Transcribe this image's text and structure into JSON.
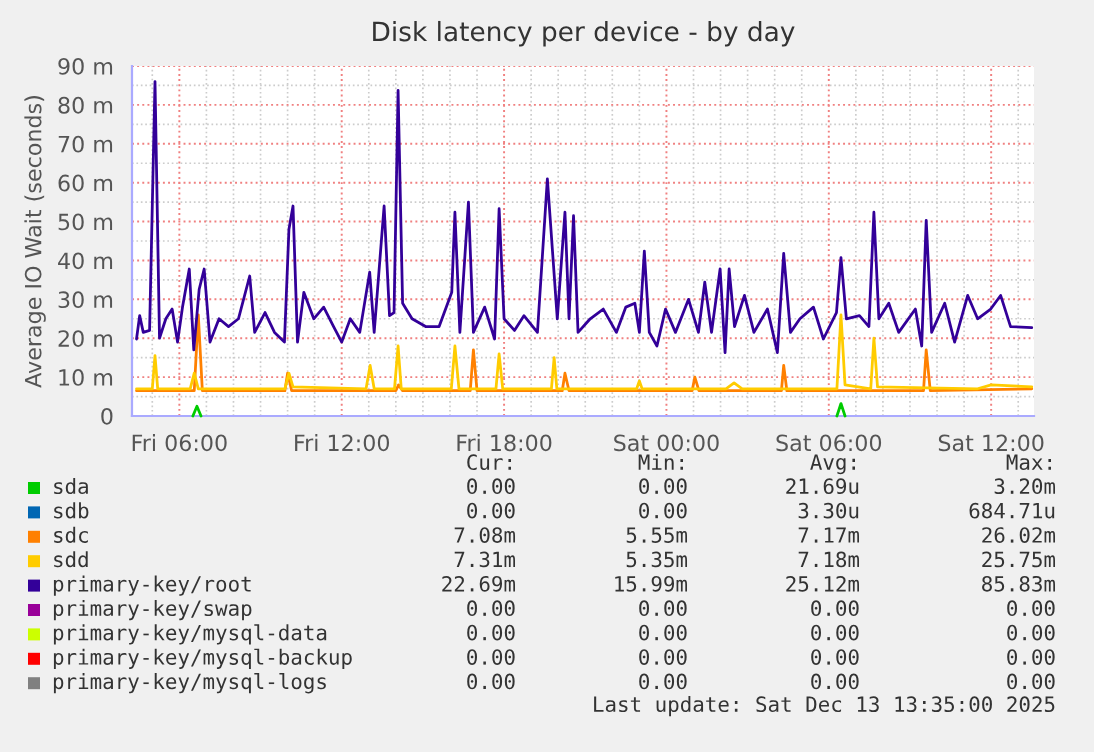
{
  "chart_data": {
    "type": "line",
    "title": "Disk latency per device - by day",
    "ylabel": "Average IO Wait (seconds)",
    "xlim": [
      "2025-12-12T04:15",
      "2025-12-13T13:35"
    ],
    "ylim": [
      0,
      90
    ],
    "xticks": [
      {
        "value": "2025-12-12T06:00",
        "label": "Fri 06:00"
      },
      {
        "value": "2025-12-12T12:00",
        "label": "Fri 12:00"
      },
      {
        "value": "2025-12-12T18:00",
        "label": "Fri 18:00"
      },
      {
        "value": "2025-12-13T00:00",
        "label": "Sat 00:00"
      },
      {
        "value": "2025-12-13T06:00",
        "label": "Sat 06:00"
      },
      {
        "value": "2025-12-13T12:00",
        "label": "Sat 12:00"
      }
    ],
    "yticks": [
      0,
      {
        "value": 10,
        "label": "10 m"
      },
      {
        "value": 20,
        "label": "20 m"
      },
      {
        "value": 30,
        "label": "30 m"
      },
      {
        "value": 40,
        "label": "40 m"
      },
      {
        "value": 50,
        "label": "50 m"
      },
      {
        "value": 60,
        "label": "60 m"
      },
      {
        "value": 70,
        "label": "70 m"
      },
      {
        "value": 80,
        "label": "80 m"
      },
      {
        "value": 90,
        "label": "90 m"
      }
    ],
    "grid": true,
    "legend": "bottom",
    "line_style": "solid",
    "marker": "none",
    "series": [
      {
        "name": "sda",
        "color": "#00cc00",
        "x": [
          "2025-12-12T06:30",
          "2025-12-12T06:39",
          "2025-12-12T06:48",
          "2025-12-12T18:00",
          "2025-12-13T06:18",
          "2025-12-13T06:27",
          "2025-12-13T06:36"
        ],
        "values": [
          0,
          2.5,
          0,
          null,
          0,
          3.2,
          0
        ]
      },
      {
        "name": "sdb",
        "color": "#0066b3"
      },
      {
        "name": "sdc",
        "color": "#ff8000",
        "x": [
          "2025-12-12T04:25",
          "2025-12-12T06:33",
          "2025-12-12T06:42",
          "2025-12-12T06:51",
          "2025-12-12T09:54",
          "2025-12-12T10:00",
          "2025-12-12T10:09",
          "2025-12-12T14:00",
          "2025-12-12T14:06",
          "2025-12-12T14:15",
          "2025-12-12T16:45",
          "2025-12-12T16:52",
          "2025-12-12T17:00",
          "2025-12-12T20:09",
          "2025-12-12T20:15",
          "2025-12-12T20:24",
          "2025-12-13T00:57",
          "2025-12-13T01:03",
          "2025-12-13T01:12",
          "2025-12-13T04:15",
          "2025-12-13T04:20",
          "2025-12-13T04:27",
          "2025-12-13T09:30",
          "2025-12-13T09:36",
          "2025-12-13T09:45",
          "2025-12-13T13:30"
        ],
        "values": [
          6.5,
          6.5,
          26,
          6.5,
          6.5,
          11,
          6.5,
          6.5,
          8,
          6.5,
          6.5,
          17,
          6.5,
          6.5,
          11,
          6.5,
          6.5,
          10,
          6.5,
          6.5,
          13,
          6.5,
          6.5,
          17,
          6.5,
          7
        ]
      },
      {
        "name": "sdd",
        "color": "#ffcc00",
        "x": [
          "2025-12-12T04:25",
          "2025-12-12T05:00",
          "2025-12-12T05:06",
          "2025-12-12T05:12",
          "2025-12-12T06:24",
          "2025-12-12T06:33",
          "2025-12-12T06:42",
          "2025-12-12T09:54",
          "2025-12-12T10:03",
          "2025-12-12T10:12",
          "2025-12-12T12:54",
          "2025-12-12T13:03",
          "2025-12-12T13:12",
          "2025-12-12T13:57",
          "2025-12-12T14:05",
          "2025-12-12T14:12",
          "2025-12-12T16:03",
          "2025-12-12T16:11",
          "2025-12-12T16:20",
          "2025-12-12T17:42",
          "2025-12-12T17:49",
          "2025-12-12T17:57",
          "2025-12-12T19:45",
          "2025-12-12T19:51",
          "2025-12-12T19:57",
          "2025-12-12T22:54",
          "2025-12-12T23:00",
          "2025-12-12T23:06",
          "2025-12-13T02:12",
          "2025-12-13T02:30",
          "2025-12-13T02:48",
          "2025-12-13T06:18",
          "2025-12-13T06:27",
          "2025-12-13T06:36",
          "2025-12-13T07:33",
          "2025-12-13T07:40",
          "2025-12-13T07:48",
          "2025-12-13T11:30",
          "2025-12-13T12:00",
          "2025-12-13T13:30"
        ],
        "values": [
          7,
          7,
          15.5,
          7,
          7,
          11,
          7,
          7,
          11,
          7.5,
          7,
          13,
          7,
          7,
          18,
          7,
          7,
          18,
          7,
          7,
          16,
          7,
          7,
          15,
          7,
          7,
          9,
          7,
          7,
          8.5,
          7,
          7,
          26,
          8,
          7,
          20,
          7.5,
          7,
          8,
          7.5
        ]
      },
      {
        "name": "primary-key/root",
        "color": "#330099",
        "x": [
          "2025-12-12T04:25",
          "2025-12-12T04:32",
          "2025-12-12T04:40",
          "2025-12-12T04:54",
          "2025-12-12T05:06",
          "2025-12-12T05:16",
          "2025-12-12T05:30",
          "2025-12-12T05:44",
          "2025-12-12T05:56",
          "2025-12-12T06:07",
          "2025-12-12T06:22",
          "2025-12-12T06:32",
          "2025-12-12T06:44",
          "2025-12-12T06:55",
          "2025-12-12T07:08",
          "2025-12-12T07:28",
          "2025-12-12T07:49",
          "2025-12-12T08:11",
          "2025-12-12T08:36",
          "2025-12-12T08:47",
          "2025-12-12T09:10",
          "2025-12-12T09:31",
          "2025-12-12T09:53",
          "2025-12-12T10:03",
          "2025-12-12T10:12",
          "2025-12-12T10:22",
          "2025-12-12T10:36",
          "2025-12-12T10:58",
          "2025-12-12T11:20",
          "2025-12-12T11:42",
          "2025-12-12T12:00",
          "2025-12-12T12:19",
          "2025-12-12T12:40",
          "2025-12-12T13:02",
          "2025-12-12T13:12",
          "2025-12-12T13:34",
          "2025-12-12T13:46",
          "2025-12-12T13:56",
          "2025-12-12T14:05",
          "2025-12-12T14:15",
          "2025-12-12T14:36",
          "2025-12-12T15:06",
          "2025-12-12T15:36",
          "2025-12-12T16:04",
          "2025-12-12T16:11",
          "2025-12-12T16:22",
          "2025-12-12T16:41",
          "2025-12-12T16:52",
          "2025-12-12T17:17",
          "2025-12-12T17:39",
          "2025-12-12T17:49",
          "2025-12-12T18:00",
          "2025-12-12T18:23",
          "2025-12-12T18:44",
          "2025-12-12T19:14",
          "2025-12-12T19:36",
          "2025-12-12T19:58",
          "2025-12-12T20:15",
          "2025-12-12T20:24",
          "2025-12-12T20:34",
          "2025-12-12T20:44",
          "2025-12-12T21:11",
          "2025-12-12T21:40",
          "2025-12-12T22:09",
          "2025-12-12T22:30",
          "2025-12-12T22:50",
          "2025-12-12T23:00",
          "2025-12-12T23:11",
          "2025-12-12T23:22",
          "2025-12-12T23:39",
          "2025-12-12T23:58",
          "2025-12-13T00:20",
          "2025-12-13T00:49",
          "2025-12-13T01:11",
          "2025-12-13T01:25",
          "2025-12-13T01:40",
          "2025-12-13T01:59",
          "2025-12-13T02:10",
          "2025-12-13T02:19",
          "2025-12-13T02:31",
          "2025-12-13T02:53",
          "2025-12-13T03:14",
          "2025-12-13T03:44",
          "2025-12-13T04:06",
          "2025-12-13T04:20",
          "2025-12-13T04:35",
          "2025-12-13T04:56",
          "2025-12-13T05:26",
          "2025-12-13T05:48",
          "2025-12-13T06:17",
          "2025-12-13T06:27",
          "2025-12-13T06:39",
          "2025-12-13T07:08",
          "2025-12-13T07:29",
          "2025-12-13T07:40",
          "2025-12-13T07:51",
          "2025-12-13T08:13",
          "2025-12-13T08:35",
          "2025-12-13T09:12",
          "2025-12-13T09:26",
          "2025-12-13T09:36",
          "2025-12-13T09:48",
          "2025-12-13T10:17",
          "2025-12-13T10:39",
          "2025-12-13T11:08",
          "2025-12-13T11:30",
          "2025-12-13T11:59",
          "2025-12-13T12:21",
          "2025-12-13T12:43",
          "2025-12-13T13:30"
        ],
        "values": [
          19.8,
          25.8,
          21.5,
          22,
          86,
          20,
          25,
          27.5,
          19,
          28,
          37.8,
          17,
          32.6,
          37.8,
          19,
          25,
          23,
          25,
          36,
          21.5,
          26.6,
          21.5,
          19,
          48,
          54,
          19,
          31.8,
          25,
          28,
          23,
          19,
          25,
          21.5,
          37,
          21.5,
          54,
          25.8,
          26.6,
          83.7,
          29,
          25,
          23,
          23,
          31.8,
          52.4,
          21.5,
          55,
          21.5,
          28,
          19.8,
          53.3,
          25,
          22,
          25.8,
          21.5,
          61,
          25,
          52.4,
          25,
          51.5,
          21.5,
          25,
          27.5,
          21.5,
          28,
          29,
          21.5,
          42.4,
          21.5,
          18,
          27.5,
          21.5,
          30,
          21.5,
          34.4,
          21.5,
          37.8,
          16.3,
          37.8,
          23,
          31,
          21.5,
          27.5,
          16.3,
          41.8,
          21.5,
          25,
          28,
          19.8,
          26.6,
          40.7,
          25,
          25.8,
          23,
          52.4,
          25,
          29,
          21.5,
          27.5,
          18,
          50.3,
          21.5,
          29,
          19,
          31,
          25,
          27.5,
          31,
          23,
          22.7
        ]
      },
      {
        "name": "primary-key/swap",
        "color": "#990099"
      },
      {
        "name": "primary-key/mysql-data",
        "color": "#ccff00"
      },
      {
        "name": "primary-key/mysql-backup",
        "color": "#ff0000"
      },
      {
        "name": "primary-key/mysql-logs",
        "color": "#808080"
      }
    ],
    "annotations": [
      "Cur:",
      "Min:",
      "Avg:",
      "Max:",
      "0.00",
      "0.00",
      "21.69u",
      "3.20m",
      "0.00",
      "0.00",
      "3.30u",
      "684.71u",
      "7.08m",
      "5.55m",
      "7.17m",
      "26.02m",
      "7.31m",
      "5.35m",
      "7.18m",
      "25.75m",
      "22.69m",
      "15.99m",
      "25.12m",
      "85.83m",
      "0.00",
      "0.00",
      "0.00",
      "0.00",
      "0.00",
      "0.00",
      "0.00",
      "0.00",
      "0.00",
      "0.00",
      "0.00",
      "0.00",
      "0.00",
      "0.00",
      "0.00",
      "0.00",
      "Last update: Sat Dec 13 13:35:00 2025"
    ]
  }
}
